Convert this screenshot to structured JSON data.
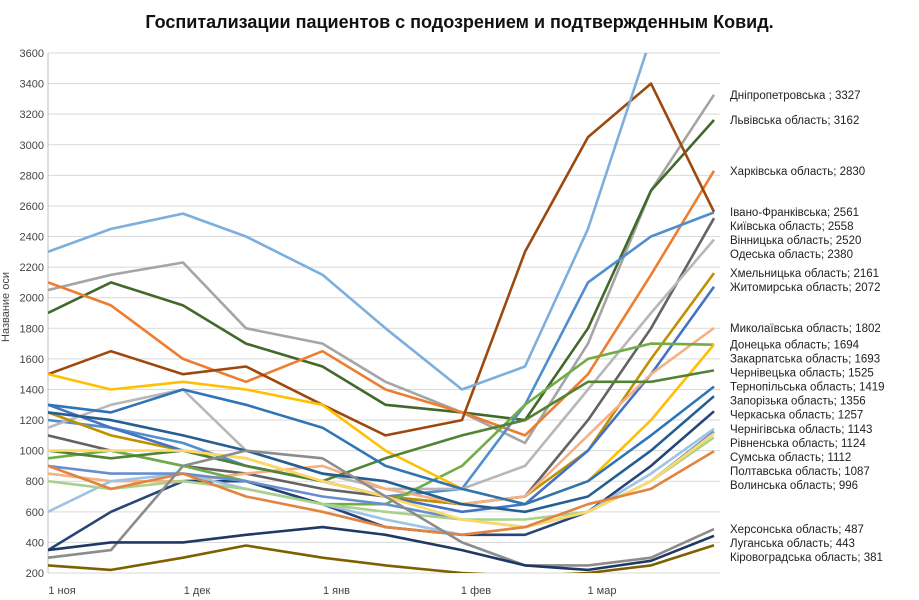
{
  "chart_data": {
    "type": "line",
    "title": "Госпитализации пациентов с подозрением и подтвержденным Ковид.",
    "ylabel": "Название оси",
    "xlabel": "",
    "ylim": [
      200,
      3600
    ],
    "yticks": [
      200,
      400,
      600,
      800,
      1000,
      1200,
      1400,
      1600,
      1800,
      2000,
      2200,
      2400,
      2600,
      2800,
      3000,
      3200,
      3400,
      3600
    ],
    "xticks": [
      {
        "date": "2020-11-01",
        "label": "1 ноя"
      },
      {
        "date": "2020-12-01",
        "label": "1 дек"
      },
      {
        "date": "2021-01-01",
        "label": "1 янв"
      },
      {
        "date": "2021-02-01",
        "label": "1 фев"
      },
      {
        "date": "2021-03-01",
        "label": "1 мар"
      }
    ],
    "grid": true,
    "legend": "data labels at line ends (right)",
    "x": [
      "2020-11-01",
      "2020-11-15",
      "2020-12-01",
      "2020-12-15",
      "2021-01-01",
      "2021-01-15",
      "2021-02-01",
      "2021-02-15",
      "2021-03-01",
      "2021-03-15",
      "2021-03-29"
    ],
    "series": [
      {
        "name": "Дніпропетровська ",
        "end_label": "Дніпропетровська ; 3327",
        "color": "#a5a5a5",
        "values": [
          2050,
          2150,
          2230,
          1800,
          1700,
          1450,
          1250,
          1050,
          1700,
          2700,
          3327
        ]
      },
      {
        "name": "Львівська область",
        "end_label": "Львівська область; 3162",
        "color": "#43682b",
        "values": [
          1900,
          2100,
          1950,
          1700,
          1550,
          1300,
          1250,
          1200,
          1800,
          2700,
          3162
        ]
      },
      {
        "name": "Харківська область",
        "end_label": "Харківська область; 2830",
        "color": "#ed7d31",
        "values": [
          2100,
          1950,
          1600,
          1450,
          1650,
          1400,
          1250,
          1100,
          1500,
          2150,
          2830
        ]
      },
      {
        "name": "Київська область",
        "end_label": "Київська область; 2558",
        "color": "#4f8fce",
        "values": [
          1200,
          1150,
          1050,
          900,
          800,
          700,
          750,
          1300,
          2100,
          2400,
          2558
        ]
      },
      {
        "name": "Івано-Франківська",
        "end_label": "Івано-Франківська; 2561",
        "color": "#9e480e",
        "values": [
          1500,
          1650,
          1500,
          1550,
          1300,
          1100,
          1200,
          2300,
          3050,
          3400,
          2561
        ]
      },
      {
        "name": "Вінницька область",
        "end_label": "Вінницька область; 2520",
        "color": "#636363",
        "values": [
          1100,
          1000,
          900,
          850,
          750,
          700,
          650,
          700,
          1200,
          1800,
          2520
        ]
      },
      {
        "name": "Одеська область",
        "end_label": "Одеська область; 2380",
        "color": "#b7b7b7",
        "values": [
          1150,
          1300,
          1400,
          1000,
          850,
          750,
          750,
          900,
          1400,
          1900,
          2380
        ]
      },
      {
        "name": "Хмельницька область",
        "end_label": "Хмельницька область; 2161",
        "color": "#bf9000",
        "values": [
          1250,
          1100,
          1000,
          950,
          800,
          700,
          650,
          700,
          1000,
          1600,
          2161
        ]
      },
      {
        "name": "Житомирська область",
        "end_label": "Житомирська область; 2072",
        "color": "#4472c4",
        "values": [
          1300,
          1150,
          1000,
          900,
          800,
          700,
          600,
          650,
          1000,
          1500,
          2072
        ]
      },
      {
        "name": "Миколаївська область",
        "end_label": "Миколаївська область; 1802",
        "color": "#f4b183",
        "values": [
          850,
          800,
          800,
          850,
          900,
          750,
          650,
          700,
          1100,
          1500,
          1802
        ]
      },
      {
        "name": "Закарпатська область",
        "end_label": "Закарпатська область; 1693",
        "color": "#70ad47",
        "values": [
          950,
          1000,
          900,
          800,
          650,
          650,
          900,
          1300,
          1600,
          1700,
          1693
        ]
      },
      {
        "name": "Донецька область",
        "end_label": "Донецька область; 1694",
        "color": "#ffc000",
        "values": [
          1500,
          1400,
          1450,
          1400,
          1300,
          1000,
          750,
          650,
          800,
          1200,
          1694
        ]
      },
      {
        "name": "Чернівецька область",
        "end_label": "Чернівецька область; 1525",
        "color": "#548235",
        "values": [
          1000,
          950,
          1000,
          900,
          800,
          950,
          1100,
          1200,
          1450,
          1450,
          1525
        ]
      },
      {
        "name": "Тернопільська область",
        "end_label": "Тернопільська область; 1419",
        "color": "#2e75b6",
        "values": [
          1300,
          1250,
          1400,
          1300,
          1150,
          900,
          750,
          650,
          800,
          1100,
          1419
        ]
      },
      {
        "name": "Запорізька область",
        "end_label": "Запорізька область; 1356",
        "color": "#255e91",
        "values": [
          1250,
          1200,
          1100,
          1000,
          850,
          800,
          650,
          600,
          700,
          1000,
          1356
        ]
      },
      {
        "name": "Черкаська область",
        "end_label": "Черкаська область; 1257",
        "color": "#264478",
        "values": [
          350,
          600,
          800,
          800,
          650,
          500,
          450,
          450,
          600,
          900,
          1257
        ]
      },
      {
        "name": "Чернігівська область",
        "end_label": "Чернігівська область; 1143",
        "color": "#9dc3e6",
        "values": [
          600,
          800,
          850,
          750,
          650,
          550,
          450,
          500,
          600,
          850,
          1143
        ]
      },
      {
        "name": "Рівненська область",
        "end_label": "Рівненська область; 1124",
        "color": "#698ed0",
        "values": [
          900,
          850,
          850,
          800,
          700,
          650,
          550,
          500,
          600,
          800,
          1124
        ]
      },
      {
        "name": "Полтавська область",
        "end_label": "Полтавська область; 1087",
        "color": "#a9d18e",
        "values": [
          800,
          750,
          800,
          750,
          650,
          600,
          550,
          550,
          600,
          800,
          1087
        ]
      },
      {
        "name": "Сумська область",
        "end_label": "Сумська область; 1112",
        "color": "#ffd966",
        "values": [
          1000,
          1000,
          1000,
          950,
          800,
          700,
          550,
          500,
          600,
          800,
          1112
        ]
      },
      {
        "name": "Волинська область",
        "end_label": "Волинська область; 996",
        "color": "#e2843f",
        "values": [
          900,
          750,
          850,
          700,
          600,
          500,
          450,
          500,
          650,
          750,
          996
        ]
      },
      {
        "name": "Херсонська область",
        "end_label": "Херсонська область; 487",
        "color": "#8c8c8c",
        "values": [
          300,
          350,
          900,
          1000,
          950,
          700,
          400,
          250,
          250,
          300,
          487
        ]
      },
      {
        "name": "Луганська область",
        "end_label": "Луганська область; 443",
        "color": "#1f3864",
        "values": [
          350,
          400,
          400,
          450,
          500,
          450,
          350,
          250,
          220,
          280,
          443
        ]
      },
      {
        "name": "Кіровоградська область",
        "end_label": "Кіровоградська область; 381",
        "color": "#7f6000",
        "values": [
          250,
          220,
          300,
          380,
          300,
          250,
          200,
          180,
          200,
          250,
          381
        ]
      },
      {
        "color": "#7cafdd",
        "values": [
          2300,
          2450,
          2550,
          2400,
          2150,
          1800,
          1400,
          1550,
          2450,
          3700,
          null
        ]
      }
    ]
  }
}
